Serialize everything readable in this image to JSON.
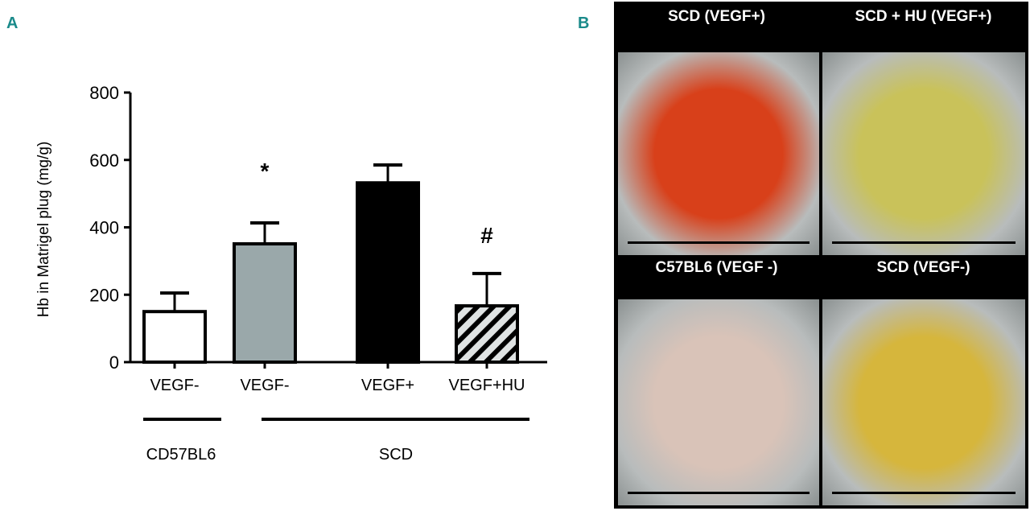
{
  "panels": {
    "a": "A",
    "b": "B"
  },
  "chart_data": {
    "type": "bar",
    "categories": [
      "VEGF-",
      "VEGF-",
      "VEGF+",
      "VEGF+HU"
    ],
    "groups": [
      {
        "label": "CD57BL6",
        "categories": [
          0
        ]
      },
      {
        "label": "SCD",
        "categories": [
          1,
          2,
          3
        ]
      }
    ],
    "values": [
      150,
      351,
      532,
      167
    ],
    "error_upper": [
      205,
      413,
      585,
      263
    ],
    "fills": [
      "#ffffff",
      "#9aa8aa",
      "#000000",
      "hatched"
    ],
    "annotations": [
      "",
      "*",
      "",
      "#"
    ],
    "ylabel": "Hb in Matrigel plug (mg/g)",
    "xlabel": "",
    "ylim": [
      0,
      800
    ],
    "yticks": [
      0,
      200,
      400,
      600,
      800
    ]
  },
  "photos": [
    {
      "label": "SCD (VEGF+)",
      "color": "#d8401a"
    },
    {
      "label": "SCD + HU (VEGF+)",
      "color": "#c9c25a"
    },
    {
      "label": "C57BL6 (VEGF -)",
      "color": "#d9c3b8"
    },
    {
      "label": "SCD (VEGF-)",
      "color": "#d6b63c"
    }
  ]
}
